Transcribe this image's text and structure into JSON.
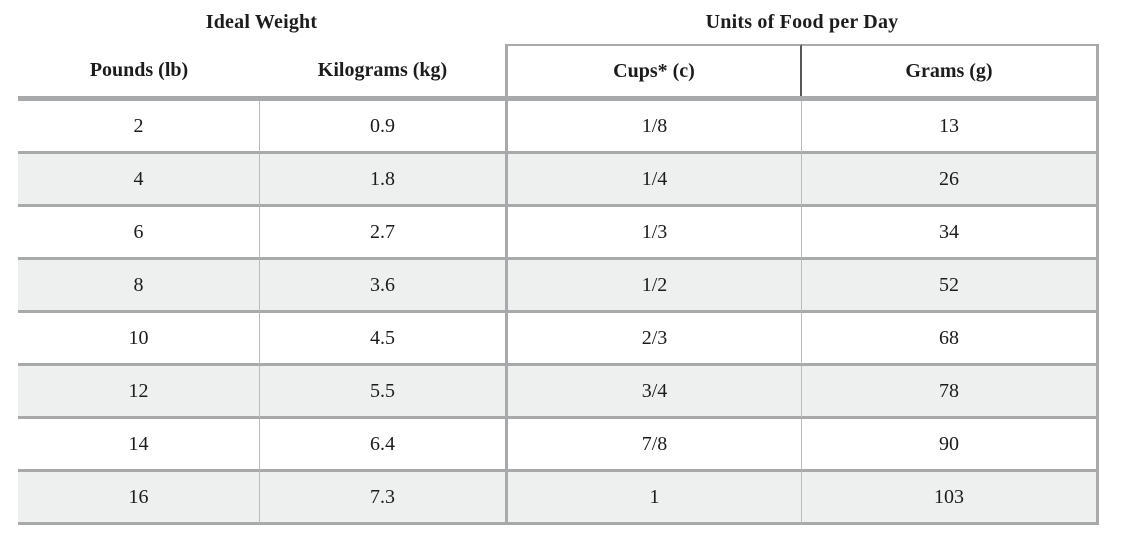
{
  "table": {
    "section_titles": {
      "ideal_weight": "Ideal Weight",
      "units_of_food": "Units of Food per Day"
    },
    "columns": {
      "pounds": "Pounds (lb)",
      "kilograms": "Kilograms (kg)",
      "cups": "Cups* (c)",
      "grams": "Grams (g)"
    },
    "rows": [
      [
        "2",
        "0.9",
        "1/8",
        "13"
      ],
      [
        "4",
        "1.8",
        "1/4",
        "26"
      ],
      [
        "6",
        "2.7",
        "1/3",
        "34"
      ],
      [
        "8",
        "3.6",
        "1/2",
        "52"
      ],
      [
        "10",
        "4.5",
        "2/3",
        "68"
      ],
      [
        "12",
        "5.5",
        "3/4",
        "78"
      ],
      [
        "14",
        "6.4",
        "7/8",
        "90"
      ],
      [
        "16",
        "7.3",
        "1",
        "103"
      ]
    ],
    "colors": {
      "stripe": "#eef0f0",
      "border": "#a7a9ab",
      "light_divider": "#b9bbbc",
      "header_divider": "#585858",
      "text": "#1c1c1c"
    }
  }
}
